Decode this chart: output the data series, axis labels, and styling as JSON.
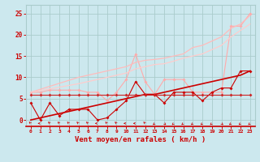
{
  "background_color": "#cce8ee",
  "grid_color": "#aacccc",
  "x_values": [
    0,
    1,
    2,
    3,
    4,
    5,
    6,
    7,
    8,
    9,
    10,
    11,
    12,
    13,
    14,
    15,
    16,
    17,
    18,
    19,
    20,
    21,
    22,
    23
  ],
  "xlabel": "Vent moyen/en rafales ( km/h )",
  "xlabel_color": "#cc0000",
  "xlabel_fontsize": 6.5,
  "tick_color": "#cc0000",
  "ylabel_values": [
    0,
    5,
    10,
    15,
    20,
    25
  ],
  "ylim": [
    -1.5,
    27
  ],
  "xlim": [
    -0.5,
    23.5
  ],
  "series": [
    {
      "name": "light_jagged_markers",
      "color": "#ffaaaa",
      "linewidth": 0.8,
      "marker": "D",
      "markersize": 2.0,
      "y": [
        6.5,
        6.5,
        7.0,
        7.0,
        7.0,
        7.0,
        6.5,
        6.5,
        4.5,
        6.5,
        9.5,
        15.5,
        9.0,
        6.0,
        9.5,
        9.5,
        9.5,
        6.5,
        6.5,
        6.5,
        6.5,
        22.0,
        22.0,
        25.0
      ]
    },
    {
      "name": "light_diagonal_high",
      "color": "#ffbbbb",
      "linewidth": 0.9,
      "marker": null,
      "y": [
        6.5,
        7.2,
        7.9,
        8.6,
        9.3,
        10.0,
        10.5,
        11.0,
        11.5,
        12.0,
        12.5,
        13.5,
        14.0,
        14.2,
        14.5,
        15.0,
        15.5,
        17.0,
        17.5,
        18.5,
        19.5,
        21.5,
        22.5,
        24.5
      ]
    },
    {
      "name": "light_diagonal_mid",
      "color": "#ffcccc",
      "linewidth": 0.9,
      "marker": null,
      "y": [
        6.5,
        6.9,
        7.3,
        7.7,
        8.1,
        8.5,
        9.0,
        9.5,
        10.0,
        10.5,
        11.0,
        12.0,
        12.5,
        13.0,
        13.2,
        13.8,
        14.5,
        15.0,
        15.5,
        16.5,
        17.5,
        19.5,
        21.0,
        22.5
      ]
    },
    {
      "name": "dark_jagged_markers",
      "color": "#cc0000",
      "linewidth": 0.8,
      "marker": "D",
      "markersize": 2.0,
      "y": [
        4.0,
        0.0,
        4.0,
        1.0,
        2.5,
        2.5,
        2.5,
        0.0,
        0.5,
        2.5,
        4.5,
        9.0,
        6.0,
        6.0,
        4.0,
        6.5,
        6.5,
        6.5,
        4.5,
        6.5,
        7.5,
        7.5,
        11.5,
        11.5
      ]
    },
    {
      "name": "dark_diagonal",
      "color": "#cc0000",
      "linewidth": 1.2,
      "marker": null,
      "y": [
        0.0,
        0.5,
        1.0,
        1.5,
        2.0,
        2.5,
        3.0,
        3.5,
        4.0,
        4.5,
        5.0,
        5.5,
        6.0,
        6.0,
        6.5,
        7.0,
        7.5,
        8.0,
        8.5,
        9.0,
        9.5,
        10.0,
        10.5,
        11.5
      ]
    },
    {
      "name": "dark_flat_markers",
      "color": "#cc2222",
      "linewidth": 0.8,
      "marker": "D",
      "markersize": 2.0,
      "y": [
        6.0,
        6.0,
        6.0,
        6.0,
        6.0,
        6.0,
        6.0,
        6.0,
        6.0,
        6.0,
        6.0,
        6.0,
        6.0,
        6.0,
        6.0,
        6.0,
        6.0,
        6.0,
        6.0,
        6.0,
        6.0,
        6.0,
        6.0,
        6.0
      ]
    }
  ],
  "wind_arrow_angles": [
    225,
    270,
    225,
    225,
    225,
    225,
    225,
    270,
    225,
    225,
    270,
    270,
    225,
    315,
    45,
    315,
    315,
    315,
    315,
    315,
    45,
    315,
    315,
    315
  ]
}
